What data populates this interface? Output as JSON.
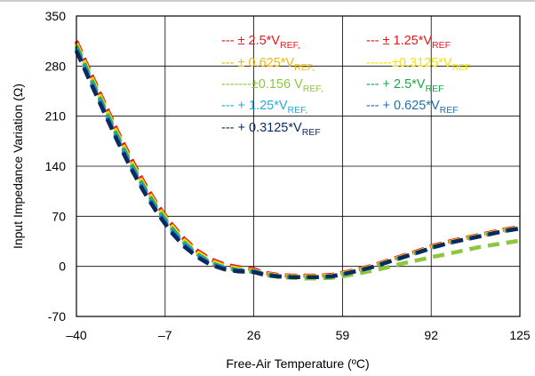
{
  "chart_data": {
    "type": "line",
    "xlabel": "Free-Air Temperature (ºC)",
    "ylabel": "Input Impedance Variation (Ω)",
    "xlim": [
      -40,
      125
    ],
    "ylim": [
      -70,
      350
    ],
    "x_ticks": [
      -40,
      -7,
      26,
      59,
      92,
      125
    ],
    "x_tick_labels": [
      "–40",
      "–7",
      "26",
      "59",
      "92",
      "125"
    ],
    "y_ticks": [
      -70,
      0,
      70,
      140,
      210,
      280,
      350
    ],
    "y_tick_labels": [
      "-70",
      "0",
      "70",
      "140",
      "210",
      "280",
      "350"
    ],
    "grid": true,
    "legend_position": "top-right",
    "x": [
      -40,
      -35,
      -30,
      -25,
      -20,
      -15,
      -10,
      -5,
      0,
      5,
      10,
      15,
      20,
      26,
      30,
      35,
      40,
      45,
      50,
      55,
      59,
      65,
      70,
      75,
      80,
      85,
      90,
      92,
      95,
      100,
      105,
      110,
      115,
      120,
      125
    ],
    "series": [
      {
        "label_main": "--- ± 2.5*V",
        "label_sub": "REF,",
        "color": "#e41a1c",
        "values": [
          315,
          273,
          232,
          191,
          153,
          118,
          87,
          61,
          39,
          22,
          10,
          3,
          -1,
          -4,
          -9,
          -12,
          -13,
          -13,
          -13,
          -12,
          -9,
          -4,
          1,
          7,
          13,
          19,
          25,
          28,
          31,
          36,
          40,
          44,
          48,
          52,
          55
        ]
      },
      {
        "label_main": "--- ± 1.25*V",
        "label_sub": "REF",
        "color": "#e41a1c",
        "values": [
          313,
          271,
          230,
          189,
          151,
          116,
          86,
          60,
          38,
          21,
          9,
          2,
          -2,
          -5,
          -9,
          -12,
          -13,
          -13,
          -13,
          -12,
          -9,
          -4,
          1,
          7,
          13,
          19,
          25,
          28,
          31,
          36,
          40,
          44,
          48,
          52,
          55
        ]
      },
      {
        "label_main": "--- ± 0.625*V",
        "label_sub": "REF,",
        "color": "#f2b705",
        "values": [
          312,
          270,
          229,
          188,
          150,
          115,
          85,
          59,
          37,
          20,
          8,
          1,
          -3,
          -6,
          -10,
          -13,
          -14,
          -14,
          -14,
          -13,
          -10,
          -5,
          0,
          6,
          12,
          18,
          24,
          27,
          30,
          35,
          39,
          43,
          47,
          51,
          54
        ]
      },
      {
        "label_main": "------±0.3125*V",
        "label_sub": "REF",
        "color": "#f5e400",
        "values": [
          311,
          269,
          228,
          187,
          149,
          114,
          84,
          58,
          36,
          19,
          7,
          0,
          -3,
          -6,
          -10,
          -13,
          -14,
          -14,
          -14,
          -13,
          -10,
          -5,
          0,
          6,
          12,
          18,
          24,
          27,
          30,
          35,
          39,
          43,
          47,
          51,
          54
        ]
      },
      {
        "label_main": "-------±0.156 V",
        "label_sub": "REF,",
        "color": "#8dc63f",
        "values": [
          309,
          267,
          226,
          185,
          147,
          112,
          82,
          56,
          34,
          17,
          5,
          -1,
          -5,
          -8,
          -12,
          -15,
          -16,
          -17,
          -17,
          -16,
          -14,
          -10,
          -6,
          -2,
          3,
          7,
          11,
          13,
          15,
          19,
          23,
          27,
          30,
          33,
          36
        ]
      },
      {
        "label_main": "--- + 2.5*V",
        "label_sub": "REF",
        "color": "#1aa64a",
        "values": [
          307,
          265,
          224,
          183,
          145,
          111,
          81,
          55,
          33,
          17,
          5,
          -2,
          -5,
          -7,
          -11,
          -14,
          -15,
          -15,
          -15,
          -14,
          -11,
          -6,
          -1,
          5,
          11,
          17,
          23,
          26,
          29,
          34,
          38,
          42,
          46,
          50,
          53
        ]
      },
      {
        "label_main": "--- + 1.25*V",
        "label_sub": "REF,",
        "color": "#29a8e0",
        "values": [
          305,
          263,
          222,
          181,
          143,
          109,
          79,
          53,
          32,
          16,
          4,
          -2,
          -6,
          -7,
          -11,
          -14,
          -15,
          -15,
          -15,
          -14,
          -11,
          -6,
          -1,
          5,
          11,
          17,
          23,
          26,
          29,
          34,
          38,
          42,
          46,
          50,
          53
        ]
      },
      {
        "label_main": "--- + 0.625*V",
        "label_sub": "REF",
        "color": "#1f6fb4",
        "values": [
          303,
          261,
          220,
          179,
          141,
          107,
          77,
          51,
          30,
          14,
          3,
          -3,
          -6,
          -7,
          -11,
          -14,
          -15,
          -15,
          -15,
          -14,
          -11,
          -6,
          -1,
          5,
          11,
          17,
          23,
          26,
          29,
          34,
          38,
          42,
          46,
          50,
          53
        ]
      },
      {
        "label_main": "--- + 0.3125*V",
        "label_sub": "REF",
        "color": "#0a2a5e",
        "values": [
          301,
          259,
          218,
          177,
          139,
          105,
          75,
          49,
          28,
          13,
          2,
          -4,
          -7,
          -8,
          -12,
          -14,
          -15,
          -15,
          -15,
          -14,
          -11,
          -6,
          -1,
          5,
          11,
          17,
          23,
          26,
          29,
          34,
          38,
          42,
          46,
          50,
          53
        ]
      }
    ]
  }
}
